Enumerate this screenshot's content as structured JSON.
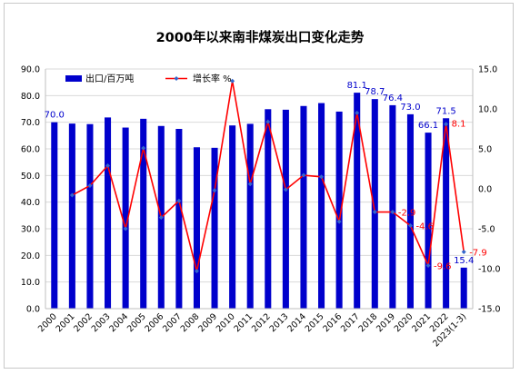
{
  "chart_data": {
    "type": "bar",
    "title": "2000年以来南非煤炭出口变化走势",
    "categories": [
      "2000",
      "2001",
      "2002",
      "2003",
      "2004",
      "2005",
      "2006",
      "2007",
      "2008",
      "2009",
      "2010",
      "2011",
      "2012",
      "2013",
      "2014",
      "2015",
      "2016",
      "2017",
      "2018",
      "2019",
      "2020",
      "2021",
      "2022",
      "2023(1-3)"
    ],
    "series": [
      {
        "name": "出口/百万吨",
        "type": "bar",
        "axis": "left",
        "color": "#0000cc",
        "values": [
          70.0,
          69.5,
          69.3,
          71.8,
          68.0,
          71.3,
          68.6,
          67.5,
          60.6,
          60.4,
          68.8,
          69.4,
          74.9,
          74.7,
          76.1,
          77.2,
          74.0,
          81.1,
          78.7,
          76.4,
          73.0,
          66.1,
          71.5,
          15.4
        ]
      },
      {
        "name": "增长率 %",
        "type": "line",
        "axis": "right",
        "color": "#ff0000",
        "marker_color": "#3366cc",
        "values": [
          null,
          -0.8,
          0.4,
          2.9,
          -5.0,
          5.1,
          -3.6,
          -1.5,
          -10.3,
          -0.2,
          13.5,
          0.6,
          8.4,
          -0.1,
          1.7,
          1.5,
          -4.1,
          9.5,
          -2.9,
          -2.9,
          -4.6,
          -9.6,
          8.1,
          -7.9
        ]
      }
    ],
    "bar_labels": [
      {
        "index": 0,
        "text": "70.0",
        "color": "#0000cc"
      },
      {
        "index": 17,
        "text": "81.1",
        "color": "#0000cc"
      },
      {
        "index": 18,
        "text": "78.7",
        "color": "#0000cc"
      },
      {
        "index": 19,
        "text": "76.4",
        "color": "#0000cc"
      },
      {
        "index": 20,
        "text": "73.0",
        "color": "#0000cc"
      },
      {
        "index": 21,
        "text": "66.1",
        "color": "#0000cc"
      },
      {
        "index": 22,
        "text": "71.5",
        "color": "#0000cc"
      },
      {
        "index": 23,
        "text": "15.4",
        "color": "#0000cc"
      }
    ],
    "line_labels": [
      {
        "index": 19,
        "text": "-2.9",
        "color": "#ff0000"
      },
      {
        "index": 20,
        "text": "-4.6",
        "color": "#ff0000"
      },
      {
        "index": 21,
        "text": "-9.6",
        "color": "#ff0000"
      },
      {
        "index": 22,
        "text": "8.1",
        "color": "#ff0000"
      },
      {
        "index": 23,
        "text": "-7.9",
        "color": "#ff0000"
      }
    ],
    "y_left": {
      "min": 0,
      "max": 90,
      "step": 10,
      "ticks": [
        "0.0",
        "10.0",
        "20.0",
        "30.0",
        "40.0",
        "50.0",
        "60.0",
        "70.0",
        "80.0",
        "90.0"
      ]
    },
    "y_right": {
      "min": -15,
      "max": 15,
      "step": 5,
      "ticks": [
        "-15.0",
        "-10.0",
        "-5.0",
        "0.0",
        "5.0",
        "10.0",
        "15.0"
      ]
    },
    "grid": "horizontal",
    "legend": {
      "placement": "top-left",
      "items": [
        "出口/百万吨",
        "增长率 %"
      ]
    }
  }
}
